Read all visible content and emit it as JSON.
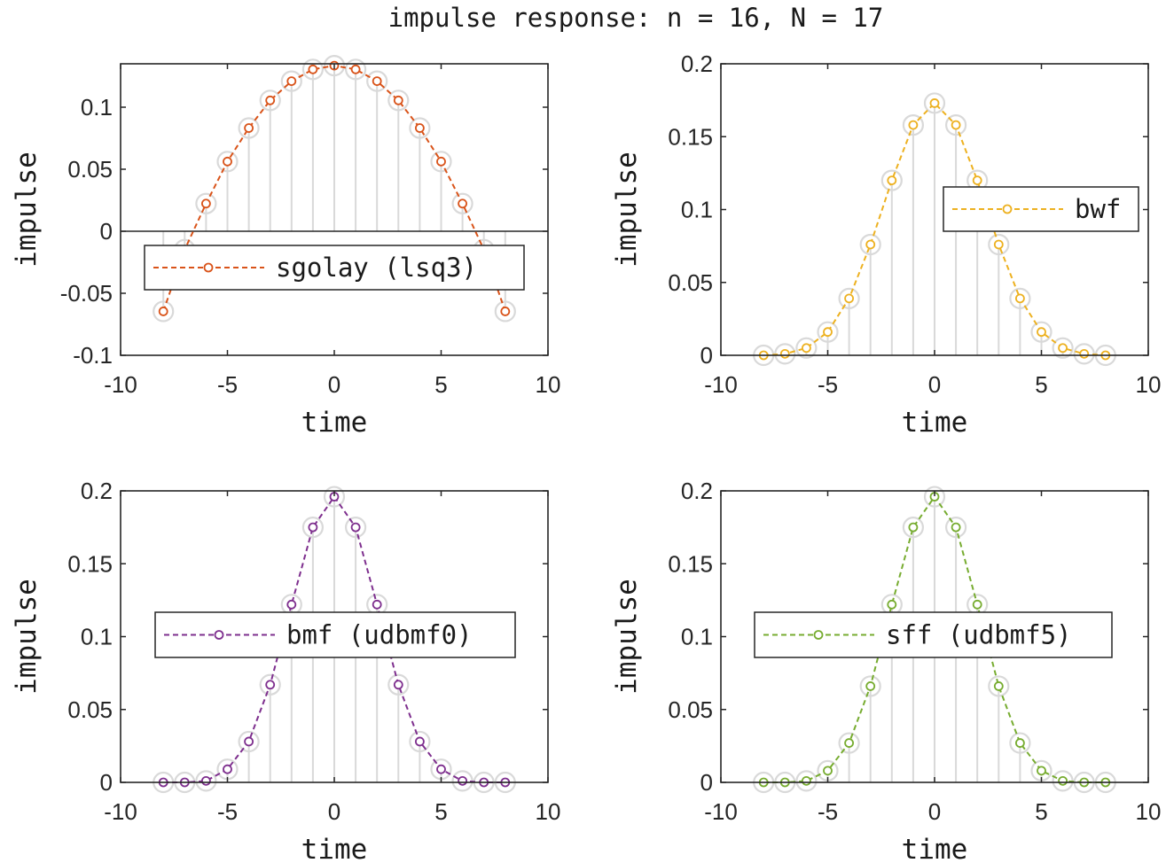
{
  "figure": {
    "title": "impulse response: n = 16, N = 17"
  },
  "chart_data": [
    {
      "type": "scatter",
      "title": "",
      "xlabel": "time",
      "ylabel": "impulse",
      "xlim": [
        -10,
        10
      ],
      "ylim": [
        -0.1,
        0.135
      ],
      "xticks": [
        -10,
        -5,
        0,
        5,
        10
      ],
      "yticks": [
        -0.1,
        -0.05,
        0,
        0.05,
        0.1
      ],
      "ytick_labels": [
        "-0.1",
        "-0.05",
        "0",
        "0.05",
        "0.1"
      ],
      "legend": {
        "position": "center",
        "label": "sgolay (lsq3)"
      },
      "zero_line": true,
      "x": [
        -8,
        -7,
        -6,
        -5,
        -4,
        -3,
        -2,
        -1,
        0,
        1,
        2,
        3,
        4,
        5,
        6,
        7,
        8
      ],
      "series": [
        {
          "name": "sgolay (lsq3)",
          "color": "#D95319",
          "marker": "circle",
          "line": "dashed",
          "values": [
            -0.0646,
            -0.0148,
            0.0223,
            0.0562,
            0.0832,
            0.1055,
            0.121,
            0.1305,
            0.1335,
            0.1305,
            0.121,
            0.1055,
            0.0832,
            0.0562,
            0.0223,
            -0.0148,
            -0.0646
          ]
        },
        {
          "name": "reference",
          "color": "#D9D9D9",
          "marker": "large-circle",
          "line": "stem",
          "values": [
            -0.0646,
            -0.0148,
            0.0223,
            0.0562,
            0.0832,
            0.1055,
            0.121,
            0.1305,
            0.1335,
            0.1305,
            0.121,
            0.1055,
            0.0832,
            0.0562,
            0.0223,
            -0.0148,
            -0.0646
          ]
        }
      ]
    },
    {
      "type": "scatter",
      "title": "",
      "xlabel": "time",
      "ylabel": "impulse",
      "xlim": [
        -10,
        10
      ],
      "ylim": [
        0,
        0.2
      ],
      "xticks": [
        -10,
        -5,
        0,
        5,
        10
      ],
      "yticks": [
        0,
        0.05,
        0.1,
        0.15,
        0.2
      ],
      "ytick_labels": [
        "0",
        "0.05",
        "0.1",
        "0.15",
        "0.2"
      ],
      "legend": {
        "position": "right",
        "label": "bwf"
      },
      "zero_line": false,
      "x": [
        -8,
        -7,
        -6,
        -5,
        -4,
        -3,
        -2,
        -1,
        0,
        1,
        2,
        3,
        4,
        5,
        6,
        7,
        8
      ],
      "series": [
        {
          "name": "bwf",
          "color": "#EDB120",
          "marker": "circle",
          "line": "dashed",
          "values": [
            0.0,
            0.001,
            0.005,
            0.016,
            0.039,
            0.076,
            0.12,
            0.158,
            0.173,
            0.158,
            0.12,
            0.076,
            0.039,
            0.016,
            0.005,
            0.001,
            0.0
          ]
        },
        {
          "name": "reference",
          "color": "#D9D9D9",
          "marker": "large-circle",
          "line": "stem",
          "values": [
            0.0,
            0.001,
            0.005,
            0.016,
            0.039,
            0.076,
            0.12,
            0.158,
            0.173,
            0.158,
            0.12,
            0.076,
            0.039,
            0.016,
            0.005,
            0.001,
            0.0
          ]
        }
      ]
    },
    {
      "type": "scatter",
      "title": "",
      "xlabel": "time",
      "ylabel": "impulse",
      "xlim": [
        -10,
        10
      ],
      "ylim": [
        0,
        0.2
      ],
      "xticks": [
        -10,
        -5,
        0,
        5,
        10
      ],
      "yticks": [
        0,
        0.05,
        0.1,
        0.15,
        0.2
      ],
      "ytick_labels": [
        "0",
        "0.05",
        "0.1",
        "0.15",
        "0.2"
      ],
      "legend": {
        "position": "center",
        "label": "bmf (udbmf0)"
      },
      "zero_line": false,
      "x": [
        -8,
        -7,
        -6,
        -5,
        -4,
        -3,
        -2,
        -1,
        0,
        1,
        2,
        3,
        4,
        5,
        6,
        7,
        8
      ],
      "series": [
        {
          "name": "bmf (udbmf0)",
          "color": "#7E2F8E",
          "marker": "circle",
          "line": "dashed",
          "values": [
            0.0,
            0.0,
            0.001,
            0.009,
            0.028,
            0.067,
            0.122,
            0.175,
            0.196,
            0.175,
            0.122,
            0.067,
            0.028,
            0.009,
            0.001,
            0.0,
            0.0
          ]
        },
        {
          "name": "reference",
          "color": "#D9D9D9",
          "marker": "large-circle",
          "line": "stem",
          "values": [
            0.0,
            0.0,
            0.001,
            0.009,
            0.028,
            0.067,
            0.122,
            0.175,
            0.196,
            0.175,
            0.122,
            0.067,
            0.028,
            0.009,
            0.001,
            0.0,
            0.0
          ]
        }
      ]
    },
    {
      "type": "scatter",
      "title": "",
      "xlabel": "time",
      "ylabel": "impulse",
      "xlim": [
        -10,
        10
      ],
      "ylim": [
        0,
        0.2
      ],
      "xticks": [
        -10,
        -5,
        0,
        5,
        10
      ],
      "yticks": [
        0,
        0.05,
        0.1,
        0.15,
        0.2
      ],
      "ytick_labels": [
        "0",
        "0.05",
        "0.1",
        "0.15",
        "0.2"
      ],
      "legend": {
        "position": "center",
        "label": "sff (udbmf5)"
      },
      "zero_line": false,
      "x": [
        -8,
        -7,
        -6,
        -5,
        -4,
        -3,
        -2,
        -1,
        0,
        1,
        2,
        3,
        4,
        5,
        6,
        7,
        8
      ],
      "series": [
        {
          "name": "sff (udbmf5)",
          "color": "#77AC30",
          "marker": "circle",
          "line": "dashed",
          "values": [
            0.0,
            0.0,
            0.001,
            0.008,
            0.027,
            0.066,
            0.122,
            0.175,
            0.196,
            0.175,
            0.122,
            0.066,
            0.027,
            0.008,
            0.001,
            0.0,
            0.0
          ]
        },
        {
          "name": "reference",
          "color": "#D9D9D9",
          "marker": "large-circle",
          "line": "stem",
          "values": [
            0.0,
            0.0,
            0.001,
            0.008,
            0.027,
            0.066,
            0.122,
            0.175,
            0.196,
            0.175,
            0.122,
            0.066,
            0.027,
            0.008,
            0.001,
            0.0,
            0.0
          ]
        }
      ]
    }
  ]
}
